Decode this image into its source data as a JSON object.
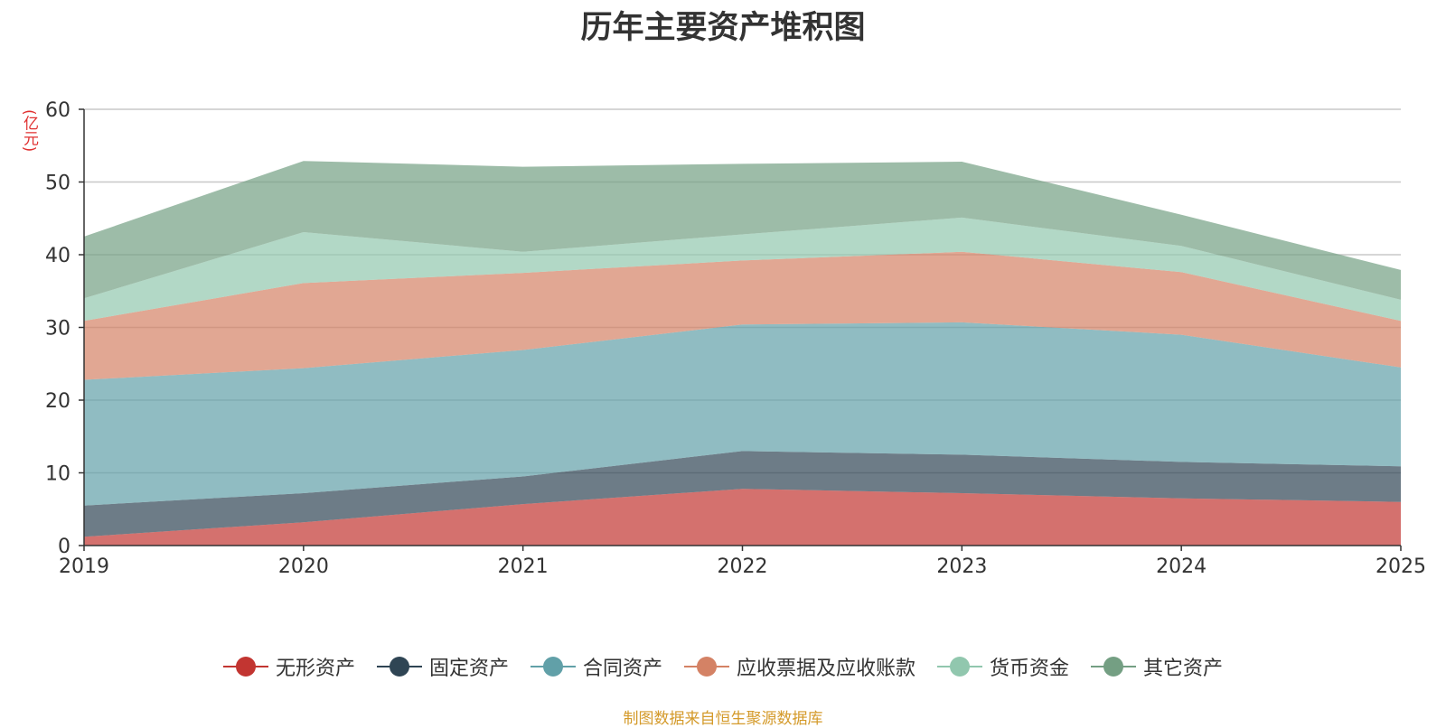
{
  "chart_data": {
    "type": "area",
    "stacked": true,
    "title": "历年主要资产堆积图",
    "unit_label": "(亿元)",
    "x": [
      "2019",
      "2020",
      "2021",
      "2022",
      "2023",
      "2024",
      "2025"
    ],
    "ylim": [
      0,
      60
    ],
    "yticks": [
      0,
      10,
      20,
      30,
      40,
      50,
      60
    ],
    "grid": true,
    "legend_position": "bottom",
    "series": [
      {
        "name": "无形资产",
        "color": "#c23531",
        "values": [
          1.2,
          3.2,
          5.7,
          7.8,
          7.2,
          6.5,
          6.0
        ]
      },
      {
        "name": "固定资产",
        "color": "#2f4554",
        "values": [
          4.3,
          4.0,
          3.8,
          5.2,
          5.3,
          5.0,
          4.9
        ]
      },
      {
        "name": "合同资产",
        "color": "#61a0a8",
        "values": [
          17.3,
          17.2,
          17.4,
          17.4,
          18.2,
          17.5,
          13.6
        ]
      },
      {
        "name": "应收票据及应收账款",
        "color": "#d48265",
        "values": [
          8.1,
          11.7,
          10.6,
          8.8,
          9.7,
          8.6,
          6.4
        ]
      },
      {
        "name": "货币资金",
        "color": "#91c7ae",
        "values": [
          3.1,
          7.0,
          2.9,
          3.6,
          4.7,
          3.6,
          2.9
        ]
      },
      {
        "name": "其它资产",
        "color": "#749f83",
        "values": [
          8.5,
          9.8,
          11.7,
          9.7,
          7.7,
          4.3,
          4.1
        ]
      }
    ]
  },
  "source_text": "制图数据来自恒生聚源数据库"
}
